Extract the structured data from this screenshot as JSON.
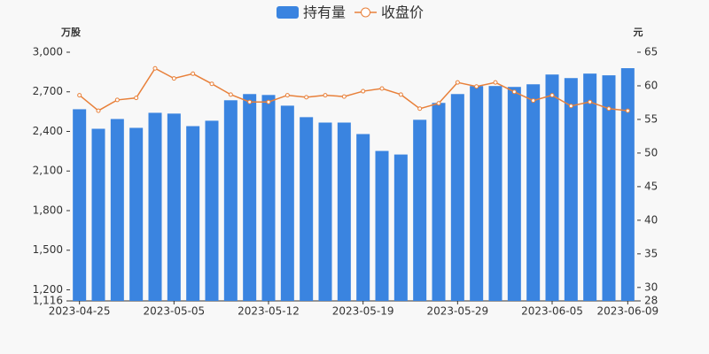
{
  "chart_data": {
    "type": "bar-line",
    "y_label": "万股",
    "y2_label": "元",
    "categories": [
      "2023-04-25",
      null,
      null,
      null,
      null,
      "2023-05-05",
      null,
      null,
      null,
      null,
      "2023-05-12",
      null,
      null,
      null,
      null,
      "2023-05-19",
      null,
      null,
      null,
      null,
      "2023-05-29",
      null,
      null,
      null,
      null,
      "2023-06-05",
      null,
      null,
      null,
      "2023-06-09"
    ],
    "series": [
      {
        "name": "持有量",
        "type": "bar",
        "color": "#3a84e0",
        "values": [
          2568,
          2420,
          2494,
          2427,
          2541,
          2535,
          2440,
          2481,
          2636,
          2683,
          2676,
          2595,
          2508,
          2467,
          2467,
          2380,
          2252,
          2225,
          2488,
          2616,
          2683,
          2744,
          2744,
          2737,
          2757,
          2831,
          2804,
          2838,
          2825,
          2879
        ]
      },
      {
        "name": "收盘价",
        "type": "line",
        "axis": "y2",
        "color": "#e8803a",
        "values": [
          58.6,
          56.3,
          57.9,
          58.2,
          62.6,
          61.1,
          61.8,
          60.3,
          58.7,
          57.6,
          57.6,
          58.6,
          58.3,
          58.6,
          58.4,
          59.2,
          59.6,
          58.7,
          56.6,
          57.4,
          60.5,
          59.9,
          60.5,
          59.1,
          57.8,
          58.6,
          57.0,
          57.6,
          56.6,
          56.3
        ]
      }
    ],
    "ylim": [
      1116,
      3000
    ],
    "yticks": [
      {
        "value": 1116,
        "label": "1,116"
      },
      {
        "value": 1200,
        "label": "1,200"
      },
      {
        "value": 1500,
        "label": "1,500"
      },
      {
        "value": 1800,
        "label": "1,800"
      },
      {
        "value": 2100,
        "label": "2,100"
      },
      {
        "value": 2400,
        "label": "2,400"
      },
      {
        "value": 2700,
        "label": "2,700"
      },
      {
        "value": 3000,
        "label": "3,000"
      }
    ],
    "y2lim": [
      28,
      65
    ],
    "y2ticks": [
      28,
      30,
      35,
      40,
      45,
      50,
      55,
      60,
      65
    ],
    "legend": "top"
  }
}
